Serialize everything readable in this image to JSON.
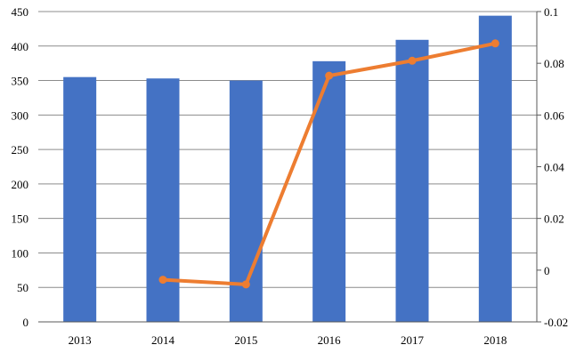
{
  "chart_data": {
    "type": "bar",
    "categories": [
      "2013",
      "2014",
      "2015",
      "2016",
      "2017",
      "2018"
    ],
    "series": [
      {
        "type": "bar",
        "axis": "left",
        "values": [
          355,
          353,
          350,
          378,
          409,
          444
        ]
      },
      {
        "type": "line",
        "axis": "right",
        "values": [
          null,
          -0.0037,
          -0.0055,
          0.0752,
          0.081,
          0.0877
        ]
      }
    ],
    "left_axis": {
      "ylim": [
        0,
        450
      ],
      "ticks": [
        "0",
        "50",
        "100",
        "150",
        "200",
        "250",
        "300",
        "350",
        "400",
        "450"
      ]
    },
    "right_axis": {
      "ylim": [
        -0.02,
        0.1
      ],
      "ticks": [
        "-0.02",
        "0",
        "0.02",
        "0.04",
        "0.06",
        "0.08",
        "0.1"
      ]
    },
    "grid": true,
    "legend": "none",
    "title": "",
    "xlabel": "",
    "ylabel": "",
    "colors": {
      "bar": "#4472C4",
      "line": "#ED7D31",
      "grid": "#8C8C8C",
      "axis": "#595959"
    }
  }
}
